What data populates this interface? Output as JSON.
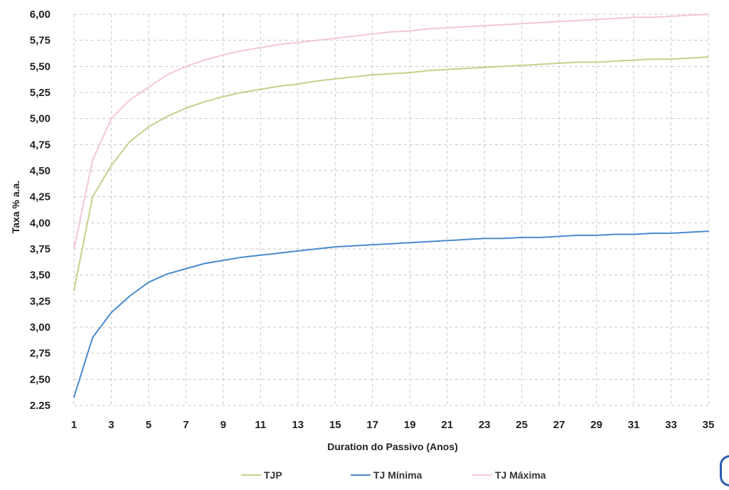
{
  "chart_data": {
    "type": "line",
    "title": "",
    "xlabel": "Duration do Passivo (Anos)",
    "ylabel": "Taxa % a.a.",
    "xlim": [
      1,
      35
    ],
    "ylim": [
      2.25,
      6.0
    ],
    "x_ticks": [
      "1",
      "3",
      "5",
      "7",
      "9",
      "11",
      "13",
      "15",
      "17",
      "19",
      "21",
      "23",
      "25",
      "27",
      "29",
      "31",
      "33",
      "35"
    ],
    "y_ticks": [
      "6,00",
      "5,75",
      "5,50",
      "5,25",
      "5,00",
      "4,75",
      "4,50",
      "4,25",
      "4,00",
      "3,75",
      "3,50",
      "3,25",
      "3,00",
      "2,75",
      "2,50",
      "2.25"
    ],
    "grid": true,
    "legend_position": "bottom",
    "x": [
      1,
      2,
      3,
      4,
      5,
      6,
      7,
      8,
      9,
      10,
      11,
      12,
      13,
      14,
      15,
      16,
      17,
      18,
      19,
      20,
      21,
      22,
      23,
      24,
      25,
      26,
      27,
      28,
      29,
      30,
      31,
      32,
      33,
      34,
      35
    ],
    "series": [
      {
        "name": "TJP",
        "color": "#c5d08c",
        "values": [
          3.35,
          4.25,
          4.55,
          4.78,
          4.92,
          5.02,
          5.1,
          5.16,
          5.21,
          5.25,
          5.28,
          5.31,
          5.33,
          5.36,
          5.38,
          5.4,
          5.42,
          5.43,
          5.44,
          5.46,
          5.47,
          5.48,
          5.49,
          5.5,
          5.51,
          5.52,
          5.53,
          5.54,
          5.54,
          5.55,
          5.56,
          5.57,
          5.57,
          5.58,
          5.59
        ]
      },
      {
        "name": "TJ Mínima",
        "color": "#4a8ad0",
        "values": [
          2.33,
          2.9,
          3.14,
          3.3,
          3.43,
          3.51,
          3.56,
          3.61,
          3.64,
          3.67,
          3.69,
          3.71,
          3.73,
          3.75,
          3.77,
          3.78,
          3.79,
          3.8,
          3.81,
          3.82,
          3.83,
          3.84,
          3.85,
          3.85,
          3.86,
          3.86,
          3.87,
          3.88,
          3.88,
          3.89,
          3.89,
          3.9,
          3.9,
          3.91,
          3.92
        ]
      },
      {
        "name": "TJ Máxima",
        "color": "#f3c8d6",
        "values": [
          3.75,
          4.6,
          5.0,
          5.18,
          5.3,
          5.42,
          5.5,
          5.56,
          5.61,
          5.65,
          5.68,
          5.71,
          5.73,
          5.75,
          5.77,
          5.79,
          5.81,
          5.83,
          5.84,
          5.86,
          5.87,
          5.88,
          5.89,
          5.9,
          5.91,
          5.92,
          5.93,
          5.94,
          5.95,
          5.96,
          5.97,
          5.97,
          5.98,
          5.99,
          6.0
        ]
      }
    ]
  }
}
